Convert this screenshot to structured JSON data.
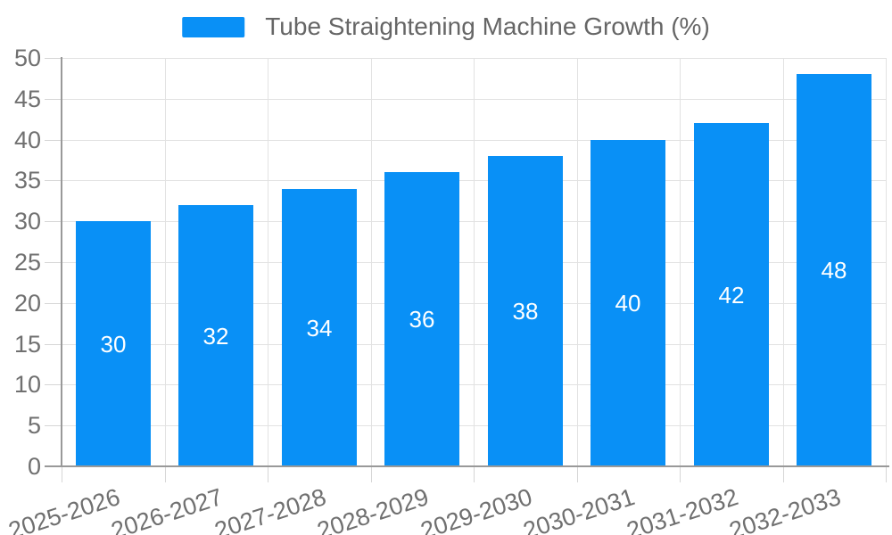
{
  "legend": {
    "label": "Tube Straightening Machine Growth (%)"
  },
  "chart_data": {
    "type": "bar",
    "series_name": "Tube Straightening Machine Growth (%)",
    "categories": [
      "2025-2026",
      "2026-2027",
      "2027-2028",
      "2028-2029",
      "2029-2030",
      "2030-2031",
      "2031-2032",
      "2032-2033"
    ],
    "values": [
      30,
      32,
      34,
      36,
      38,
      40,
      42,
      48
    ],
    "title": "",
    "xlabel": "",
    "ylabel": "",
    "ylim": [
      0,
      50
    ],
    "ytick_step": 5,
    "ytick_labels": [
      "0",
      "5",
      "10",
      "15",
      "20",
      "25",
      "30",
      "35",
      "40",
      "45",
      "50"
    ],
    "grid": true,
    "legend_position": "top-center",
    "bar_color": "#0990f6",
    "value_label_color": "#ffffff",
    "axis_line_color": "#999999",
    "gridline_color": "#e2e2e2",
    "tick_color": "#d6d6d6",
    "axis_text_color": "#707070",
    "legend_text_color": "#666666"
  }
}
